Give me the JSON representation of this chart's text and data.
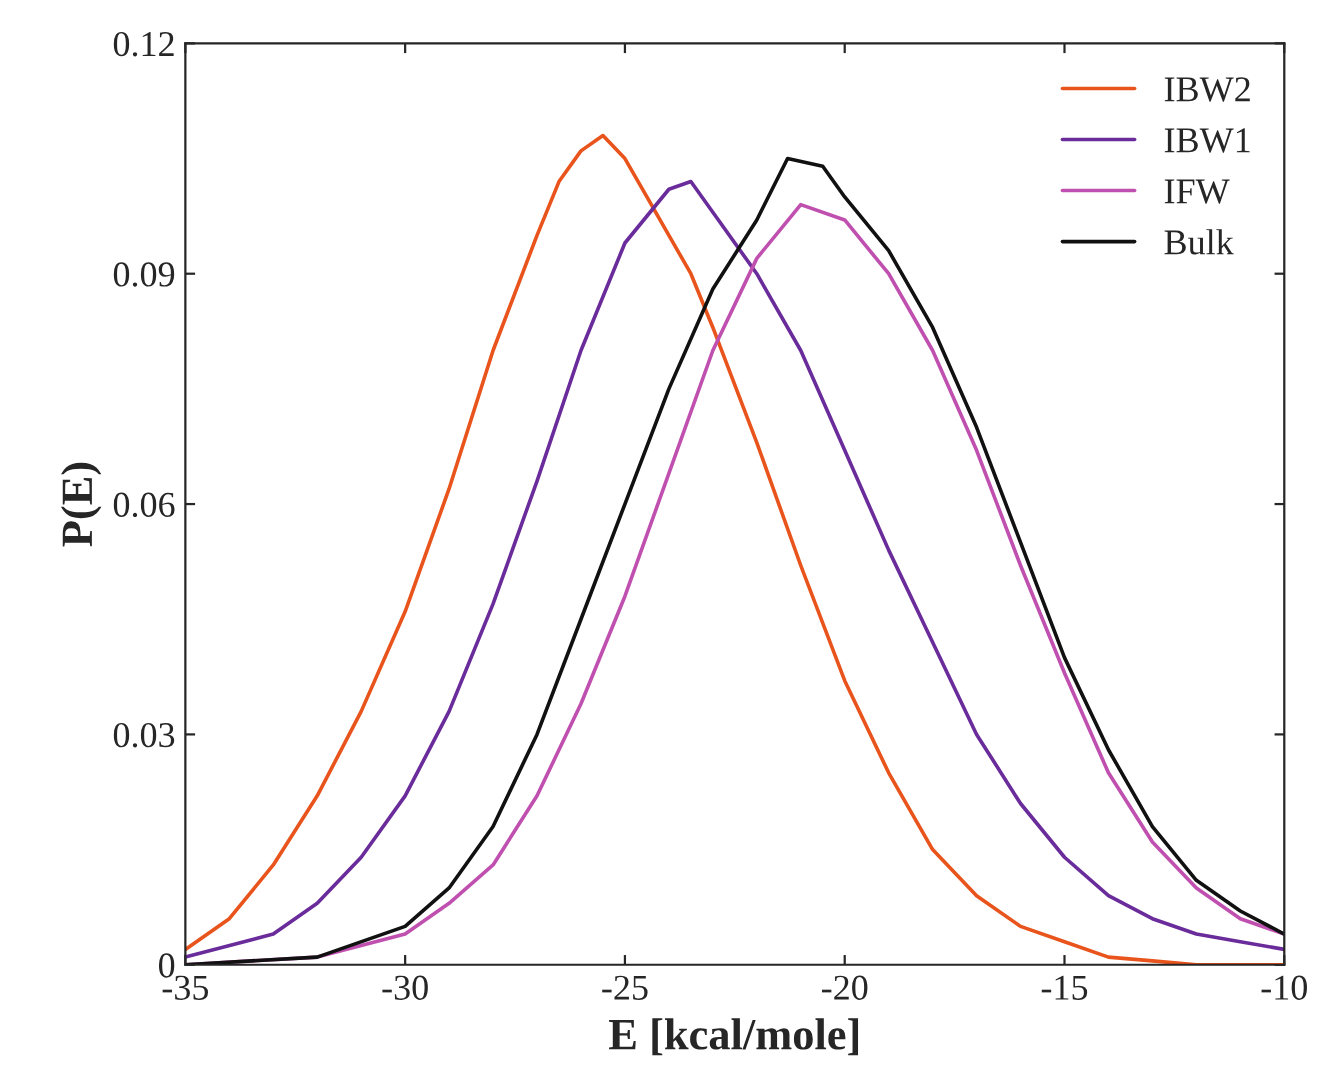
{
  "chart_data": {
    "type": "line",
    "xlabel": "E [kcal/mole]",
    "ylabel": "P(E)",
    "xlim": [
      -35,
      -10
    ],
    "xticks": [
      -35,
      -30,
      -25,
      -20,
      -15,
      -10
    ],
    "ylim": [
      0,
      0.12
    ],
    "yticks": [
      {
        "value": 0,
        "label": "0"
      },
      0.03,
      0.06,
      0.09,
      0.12
    ],
    "grid": false,
    "legend": "top right",
    "marker": "none",
    "line_style": "solid",
    "series": [
      {
        "name": "IBW2",
        "color": "#e8541c",
        "x": [
          -35,
          -34,
          -33,
          -32,
          -31,
          -30,
          -29,
          -28,
          -27,
          -26.5,
          -26,
          -25.5,
          -25,
          -24.5,
          -24,
          -23.5,
          -23,
          -22,
          -21,
          -20,
          -19,
          -18,
          -17,
          -16,
          -15,
          -14,
          -13,
          -12,
          -10
        ],
        "values": [
          0.002,
          0.006,
          0.013,
          0.022,
          0.033,
          0.046,
          0.062,
          0.08,
          0.095,
          0.102,
          0.106,
          0.108,
          0.105,
          0.1,
          0.095,
          0.09,
          0.083,
          0.068,
          0.052,
          0.037,
          0.025,
          0.015,
          0.009,
          0.005,
          0.003,
          0.001,
          0.0005,
          0,
          0
        ]
      },
      {
        "name": "IBW1",
        "color": "#6a2c9a",
        "x": [
          -35,
          -33,
          -32,
          -31,
          -30,
          -29,
          -28,
          -27,
          -26,
          -25,
          -24,
          -23.5,
          -23,
          -22,
          -21,
          -20,
          -19,
          -18,
          -17,
          -16,
          -15,
          -14,
          -13,
          -12,
          -11,
          -10
        ],
        "values": [
          0.001,
          0.004,
          0.008,
          0.014,
          0.022,
          0.033,
          0.047,
          0.063,
          0.08,
          0.094,
          0.101,
          0.102,
          0.098,
          0.09,
          0.08,
          0.067,
          0.054,
          0.042,
          0.03,
          0.021,
          0.014,
          0.009,
          0.006,
          0.004,
          0.003,
          0.002
        ]
      },
      {
        "name": "IFW",
        "color": "#c050b0",
        "x": [
          -35,
          -32,
          -30,
          -29,
          -28,
          -27,
          -26,
          -25,
          -24,
          -23,
          -22,
          -21,
          -20,
          -19,
          -18,
          -17,
          -16,
          -15,
          -14,
          -13,
          -12,
          -11,
          -10
        ],
        "values": [
          0,
          0.001,
          0.004,
          0.008,
          0.013,
          0.022,
          0.034,
          0.048,
          0.064,
          0.08,
          0.092,
          0.099,
          0.097,
          0.09,
          0.08,
          0.067,
          0.052,
          0.038,
          0.025,
          0.016,
          0.01,
          0.006,
          0.004
        ]
      },
      {
        "name": "Bulk",
        "color": "#111111",
        "x": [
          -35,
          -32,
          -30,
          -29,
          -28,
          -27,
          -26,
          -25,
          -24,
          -23,
          -22,
          -21.3,
          -20.5,
          -20,
          -19,
          -18,
          -17,
          -16,
          -15,
          -14,
          -13,
          -12,
          -11,
          -10
        ],
        "values": [
          0,
          0.001,
          0.005,
          0.01,
          0.018,
          0.03,
          0.045,
          0.06,
          0.075,
          0.088,
          0.097,
          0.105,
          0.104,
          0.1,
          0.093,
          0.083,
          0.07,
          0.055,
          0.04,
          0.028,
          0.018,
          0.011,
          0.007,
          0.004
        ]
      }
    ]
  }
}
